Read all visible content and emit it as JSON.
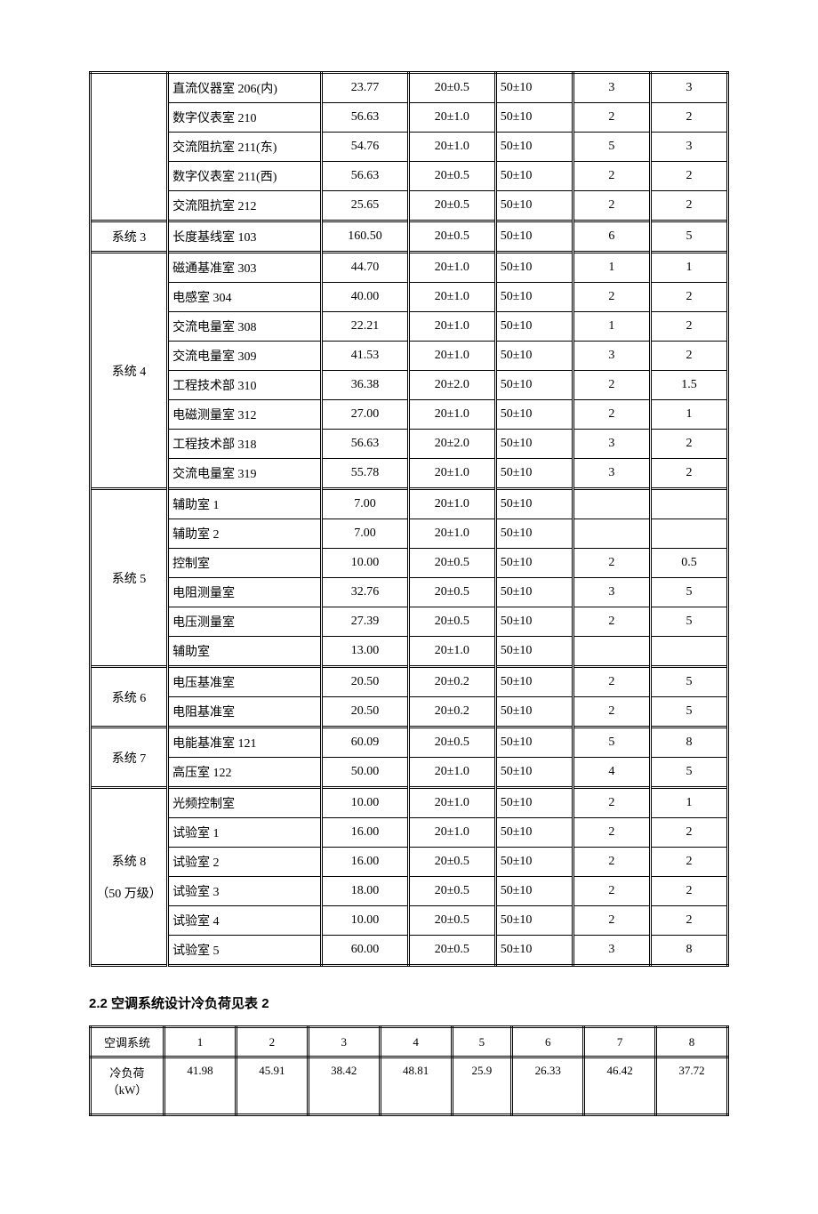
{
  "table1": {
    "columns_count": 7,
    "groups": [
      {
        "system": "",
        "rows": [
          [
            "直流仪器室 206(内)",
            "23.77",
            "20±0.5",
            "50±10",
            "3",
            "3"
          ],
          [
            "数字仪表室 210",
            "56.63",
            "20±1.0",
            "50±10",
            "2",
            "2"
          ],
          [
            "交流阻抗室 211(东)",
            "54.76",
            "20±1.0",
            "50±10",
            "5",
            "3"
          ],
          [
            "数字仪表室 211(西)",
            "56.63",
            "20±0.5",
            "50±10",
            "2",
            "2"
          ],
          [
            "交流阻抗室 212",
            "25.65",
            "20±0.5",
            "50±10",
            "2",
            "2"
          ]
        ]
      },
      {
        "system": "系统 3",
        "rows": [
          [
            "长度基线室 103",
            "160.50",
            "20±0.5",
            "50±10",
            "6",
            "5"
          ]
        ]
      },
      {
        "system": "系统 4",
        "rows": [
          [
            "磁通基准室 303",
            "44.70",
            "20±1.0",
            "50±10",
            "1",
            "1"
          ],
          [
            "电感室 304",
            "40.00",
            "20±1.0",
            "50±10",
            "2",
            "2"
          ],
          [
            "交流电量室 308",
            "22.21",
            "20±1.0",
            "50±10",
            "1",
            "2"
          ],
          [
            "交流电量室 309",
            "41.53",
            "20±1.0",
            "50±10",
            "3",
            "2"
          ],
          [
            "工程技术部 310",
            "36.38",
            "20±2.0",
            "50±10",
            "2",
            "1.5"
          ],
          [
            "电磁测量室 312",
            "27.00",
            "20±1.0",
            "50±10",
            "2",
            "1"
          ],
          [
            "工程技术部 318",
            "56.63",
            "20±2.0",
            "50±10",
            "3",
            "2"
          ],
          [
            "交流电量室 319",
            "55.78",
            "20±1.0",
            "50±10",
            "3",
            "2"
          ]
        ]
      },
      {
        "system": "系统 5",
        "rows": [
          [
            "辅助室 1",
            "7.00",
            "20±1.0",
            "50±10",
            "",
            ""
          ],
          [
            "辅助室 2",
            "7.00",
            "20±1.0",
            "50±10",
            "",
            ""
          ],
          [
            "控制室",
            "10.00",
            "20±0.5",
            "50±10",
            "2",
            "0.5"
          ],
          [
            "电阻测量室",
            "32.76",
            "20±0.5",
            "50±10",
            "3",
            "5"
          ],
          [
            "电压测量室",
            "27.39",
            "20±0.5",
            "50±10",
            "2",
            "5"
          ],
          [
            "辅助室",
            "13.00",
            "20±1.0",
            "50±10",
            "",
            ""
          ]
        ]
      },
      {
        "system": "系统 6",
        "rows": [
          [
            "电压基准室",
            "20.50",
            "20±0.2",
            "50±10",
            "2",
            "5"
          ],
          [
            "电阻基准室",
            "20.50",
            "20±0.2",
            "50±10",
            "2",
            "5"
          ]
        ]
      },
      {
        "system": "系统 7",
        "rows": [
          [
            "电能基准室 121",
            "60.09",
            "20±0.5",
            "50±10",
            "5",
            "8"
          ],
          [
            "高压室 122",
            "50.00",
            "20±1.0",
            "50±10",
            "4",
            "5"
          ]
        ]
      },
      {
        "system": "系统 8",
        "system_note": "（50 万级）",
        "rows": [
          [
            "光频控制室",
            "10.00",
            "20±1.0",
            "50±10",
            "2",
            "1"
          ],
          [
            "试验室 1",
            "16.00",
            "20±1.0",
            "50±10",
            "2",
            "2"
          ],
          [
            "试验室 2",
            "16.00",
            "20±0.5",
            "50±10",
            "2",
            "2"
          ],
          [
            "试验室 3",
            "18.00",
            "20±0.5",
            "50±10",
            "2",
            "2"
          ],
          [
            "试验室 4",
            "10.00",
            "20±0.5",
            "50±10",
            "2",
            "2"
          ],
          [
            "试验室 5",
            "60.00",
            "20±0.5",
            "50±10",
            "3",
            "8"
          ]
        ]
      }
    ]
  },
  "section_title": "2.2 空调系统设计冷负荷见表 2",
  "table2": {
    "header_label": "空调系统",
    "row_label": "冷负荷（kW）",
    "cols": [
      "1",
      "2",
      "3",
      "4",
      "5",
      "6",
      "7",
      "8"
    ],
    "values": [
      "41.98",
      "45.91",
      "38.42",
      "48.81",
      "25.9",
      "26.33",
      "46.42",
      "37.72"
    ]
  },
  "styling": {
    "background_color": "#ffffff",
    "text_color": "#000000",
    "border_color": "#000000",
    "font_family": "SimSun",
    "base_fontsize": 14
  }
}
